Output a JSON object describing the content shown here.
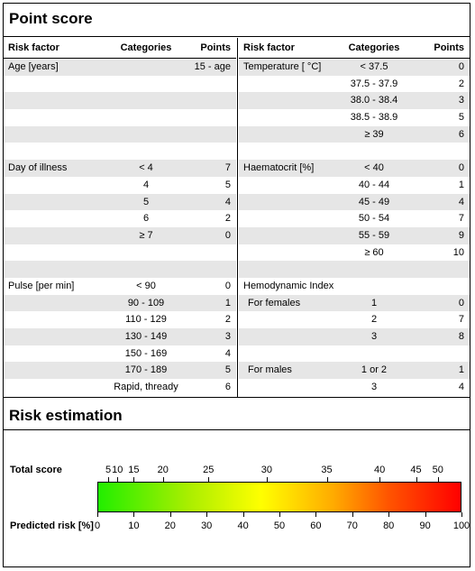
{
  "point_score": {
    "title": "Point score",
    "headers": {
      "risk_factor": "Risk factor",
      "categories": "Categories",
      "points": "Points"
    },
    "left_rows": [
      {
        "factor": "Age [years]",
        "category": "",
        "points": "15 - age",
        "shade": true
      },
      {
        "factor": "",
        "category": "",
        "points": "",
        "shade": false
      },
      {
        "factor": "",
        "category": "",
        "points": "",
        "shade": true
      },
      {
        "factor": "",
        "category": "",
        "points": "",
        "shade": false
      },
      {
        "factor": "",
        "category": "",
        "points": "",
        "shade": true
      },
      {
        "factor": "",
        "category": "",
        "points": "",
        "shade": false
      },
      {
        "factor": "Day of illness",
        "category": "< 4",
        "points": "7",
        "shade": true
      },
      {
        "factor": "",
        "category": "4",
        "points": "5",
        "shade": false
      },
      {
        "factor": "",
        "category": "5",
        "points": "4",
        "shade": true
      },
      {
        "factor": "",
        "category": "6",
        "points": "2",
        "shade": false
      },
      {
        "factor": "",
        "category": "≥ 7",
        "points": "0",
        "shade": true
      },
      {
        "factor": "",
        "category": "",
        "points": "",
        "shade": false
      },
      {
        "factor": "",
        "category": "",
        "points": "",
        "shade": true
      },
      {
        "factor": "Pulse [per min]",
        "category": "< 90",
        "points": "0",
        "shade": false
      },
      {
        "factor": "",
        "category": "90 - 109",
        "points": "1",
        "shade": true
      },
      {
        "factor": "",
        "category": "110 - 129",
        "points": "2",
        "shade": false
      },
      {
        "factor": "",
        "category": "130 - 149",
        "points": "3",
        "shade": true
      },
      {
        "factor": "",
        "category": "150 - 169",
        "points": "4",
        "shade": false
      },
      {
        "factor": "",
        "category": "170 - 189",
        "points": "5",
        "shade": true
      },
      {
        "factor": "",
        "category": "Rapid, thready",
        "points": "6",
        "shade": false
      }
    ],
    "right_rows": [
      {
        "factor": "Temperature [ °C]",
        "category": "< 37.5",
        "points": "0",
        "shade": true,
        "indent": false
      },
      {
        "factor": "",
        "category": "37.5 - 37.9",
        "points": "2",
        "shade": false,
        "indent": false
      },
      {
        "factor": "",
        "category": "38.0 - 38.4",
        "points": "3",
        "shade": true,
        "indent": false
      },
      {
        "factor": "",
        "category": "38.5 - 38.9",
        "points": "5",
        "shade": false,
        "indent": false
      },
      {
        "factor": "",
        "category": "≥ 39",
        "points": "6",
        "shade": true,
        "indent": false
      },
      {
        "factor": "",
        "category": "",
        "points": "",
        "shade": false,
        "indent": false
      },
      {
        "factor": "Haematocrit [%]",
        "category": "< 40",
        "points": "0",
        "shade": true,
        "indent": false
      },
      {
        "factor": "",
        "category": "40 - 44",
        "points": "1",
        "shade": false,
        "indent": false
      },
      {
        "factor": "",
        "category": "45 - 49",
        "points": "4",
        "shade": true,
        "indent": false
      },
      {
        "factor": "",
        "category": "50 - 54",
        "points": "7",
        "shade": false,
        "indent": false
      },
      {
        "factor": "",
        "category": "55 - 59",
        "points": "9",
        "shade": true,
        "indent": false
      },
      {
        "factor": "",
        "category": "≥ 60",
        "points": "10",
        "shade": false,
        "indent": false
      },
      {
        "factor": "",
        "category": "",
        "points": "",
        "shade": true,
        "indent": false
      },
      {
        "factor": "Hemodynamic Index",
        "category": "",
        "points": "",
        "shade": false,
        "indent": false
      },
      {
        "factor": "For females",
        "category": "1",
        "points": "0",
        "shade": true,
        "indent": true
      },
      {
        "factor": "",
        "category": "2",
        "points": "7",
        "shade": false,
        "indent": false
      },
      {
        "factor": "",
        "category": "3",
        "points": "8",
        "shade": true,
        "indent": false
      },
      {
        "factor": "",
        "category": "",
        "points": "",
        "shade": false,
        "indent": false
      },
      {
        "factor": "For males",
        "category": "1 or 2",
        "points": "1",
        "shade": true,
        "indent": true
      },
      {
        "factor": "",
        "category": "3",
        "points": "4",
        "shade": false,
        "indent": false
      }
    ]
  },
  "risk_estimation": {
    "title": "Risk estimation",
    "total_score_label": "Total score",
    "predicted_risk_label": "Predicted risk [%]",
    "score_ticks": [
      {
        "label": "5",
        "risk": 3
      },
      {
        "label": "10",
        "risk": 5.5
      },
      {
        "label": "15",
        "risk": 10
      },
      {
        "label": "20",
        "risk": 18
      },
      {
        "label": "25",
        "risk": 30.5
      },
      {
        "label": "30",
        "risk": 46.5
      },
      {
        "label": "35",
        "risk": 63
      },
      {
        "label": "40",
        "risk": 77.5
      },
      {
        "label": "45",
        "risk": 87.5
      },
      {
        "label": "50",
        "risk": 93.5
      }
    ],
    "risk_ticks": [
      "0",
      "10",
      "20",
      "30",
      "40",
      "50",
      "60",
      "70",
      "80",
      "90",
      "100"
    ],
    "colors": {
      "low": "#22ee00",
      "mid": "#ffff00",
      "high": "#ff0000"
    }
  }
}
